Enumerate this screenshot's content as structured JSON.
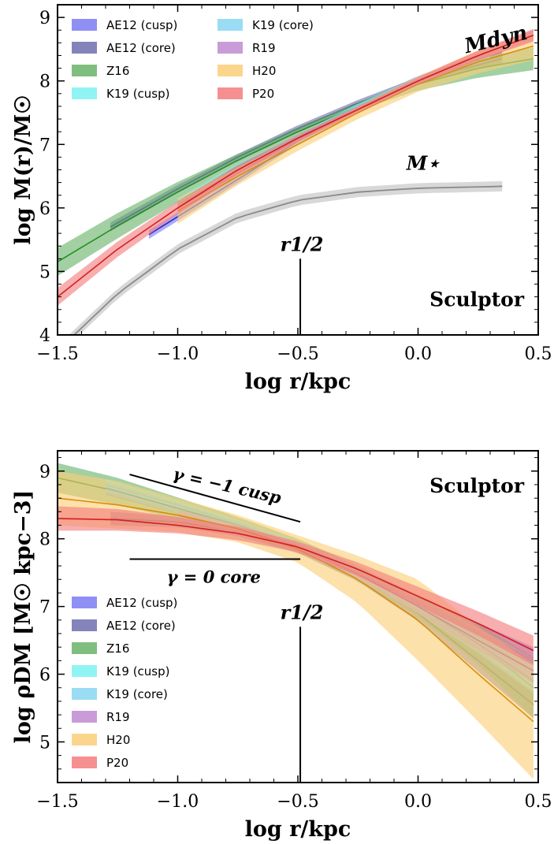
{
  "chart_data": [
    {
      "type": "area",
      "xlabel": "log r/kpc",
      "ylabel": "log M(r)/M☉",
      "xlim": [
        -1.5,
        0.5
      ],
      "ylim": [
        4,
        9.2
      ],
      "xticks": [
        "−1.5",
        "−1.0",
        "−0.5",
        "0.0",
        "0.5"
      ],
      "yticks": [
        "4",
        "5",
        "6",
        "7",
        "8",
        "9"
      ],
      "labels": {
        "object": "Sculptor",
        "mdyn": "Mdyn",
        "mstar": "M⋆",
        "rhalf": "r1/2",
        "rhalf_x": -0.49
      },
      "legend": {
        "placement": "upper-left, two columns"
      },
      "series": [
        {
          "name": "AE12 (cusp)",
          "color": "#7b7bf5",
          "x": [
            -1.12,
            -0.75,
            -0.5,
            -0.25,
            0.0,
            0.35
          ],
          "y": [
            5.58,
            6.45,
            7.05,
            7.58,
            8.02,
            8.45
          ],
          "err": [
            0.07,
            0.06,
            0.05,
            0.05,
            0.06,
            0.08
          ]
        },
        {
          "name": "AE12 (core)",
          "color": "#6f6fae",
          "x": [
            -1.28,
            -1.0,
            -0.75,
            -0.5,
            -0.25,
            0.0,
            0.35
          ],
          "y": [
            5.7,
            6.3,
            6.8,
            7.25,
            7.65,
            8.0,
            8.35
          ],
          "err": [
            0.07,
            0.06,
            0.05,
            0.05,
            0.05,
            0.06,
            0.07
          ]
        },
        {
          "name": "Z16",
          "color": "#6ab36a",
          "x": [
            -1.5,
            -1.25,
            -1.0,
            -0.75,
            -0.5,
            -0.25,
            0.0,
            0.25,
            0.48
          ],
          "y": [
            5.15,
            5.72,
            6.25,
            6.75,
            7.2,
            7.6,
            7.95,
            8.2,
            8.35
          ],
          "err": [
            0.22,
            0.2,
            0.16,
            0.1,
            0.07,
            0.06,
            0.1,
            0.15,
            0.18
          ]
        },
        {
          "name": "K19 (cusp)",
          "color": "#7ef2f2",
          "x": [
            -1.0,
            -0.75,
            -0.5,
            -0.25,
            0.0,
            0.3
          ],
          "y": [
            6.1,
            6.65,
            7.12,
            7.6,
            8.02,
            8.42
          ],
          "err": [
            0.05,
            0.05,
            0.04,
            0.04,
            0.05,
            0.06
          ]
        },
        {
          "name": "K19 (core)",
          "color": "#88d6f2",
          "x": [
            -1.0,
            -0.75,
            -0.5,
            -0.25,
            0.0,
            0.3
          ],
          "y": [
            6.05,
            6.6,
            7.1,
            7.58,
            8.0,
            8.4
          ],
          "err": [
            0.05,
            0.05,
            0.04,
            0.04,
            0.05,
            0.06
          ]
        },
        {
          "name": "R19",
          "color": "#c08ad1",
          "x": [
            -1.0,
            -0.75,
            -0.5,
            -0.25,
            0.0,
            0.25,
            0.48
          ],
          "y": [
            6.0,
            6.55,
            7.08,
            7.55,
            8.0,
            8.4,
            8.72
          ],
          "err": [
            0.06,
            0.05,
            0.04,
            0.04,
            0.05,
            0.07,
            0.08
          ]
        },
        {
          "name": "H20",
          "color": "#fbce78",
          "x": [
            -1.0,
            -0.75,
            -0.5,
            -0.25,
            0.0,
            0.25,
            0.48
          ],
          "y": [
            5.95,
            6.5,
            7.0,
            7.5,
            7.95,
            8.3,
            8.55
          ],
          "err": [
            0.2,
            0.14,
            0.1,
            0.1,
            0.12,
            0.18,
            0.22
          ]
        },
        {
          "name": "P20",
          "color": "#f47c7c",
          "x": [
            -1.5,
            -1.25,
            -1.0,
            -0.75,
            -0.5,
            -0.25,
            0.0,
            0.25,
            0.48
          ],
          "y": [
            4.6,
            5.35,
            6.0,
            6.6,
            7.1,
            7.55,
            8.0,
            8.4,
            8.72
          ],
          "err": [
            0.14,
            0.12,
            0.1,
            0.08,
            0.06,
            0.05,
            0.06,
            0.08,
            0.1
          ]
        }
      ],
      "stellar": {
        "name": "M⋆",
        "color": "#b8b8b8",
        "x": [
          -1.5,
          -1.25,
          -1.0,
          -0.75,
          -0.5,
          -0.25,
          0.0,
          0.35
        ],
        "y": [
          3.75,
          4.65,
          5.35,
          5.85,
          6.12,
          6.25,
          6.31,
          6.34
        ],
        "err": [
          0.08,
          0.08,
          0.08,
          0.08,
          0.08,
          0.08,
          0.08,
          0.08
        ]
      }
    },
    {
      "type": "area",
      "xlabel": "log r/kpc",
      "ylabel": "log ρDM [M☉ kpc−3]",
      "xlim": [
        -1.5,
        0.5
      ],
      "ylim": [
        4.4,
        9.3
      ],
      "xticks": [
        "−1.5",
        "−1.0",
        "−0.5",
        "0.0",
        "0.5"
      ],
      "yticks": [
        "5",
        "6",
        "7",
        "8",
        "9"
      ],
      "labels": {
        "object": "Sculptor",
        "cusp": "γ = −1 cusp",
        "core": "γ = 0 core",
        "rhalf": "r1/2",
        "rhalf_x": -0.49
      },
      "reference_lines": {
        "cusp": {
          "x": [
            -1.2,
            -0.49
          ],
          "y": [
            8.95,
            8.25
          ]
        },
        "core": {
          "x": [
            -1.2,
            -0.49
          ],
          "y": [
            7.7,
            7.7
          ]
        }
      },
      "legend": {
        "placement": "lower-left"
      },
      "series": [
        {
          "name": "AE12 (cusp)",
          "color": "#7b7bf5",
          "x": [
            -1.3,
            -1.0,
            -0.75,
            -0.5,
            -0.25,
            0.0,
            0.25,
            0.48
          ],
          "y": [
            8.75,
            8.45,
            8.2,
            7.9,
            7.5,
            7.05,
            6.6,
            6.2
          ],
          "err": [
            0.1,
            0.08,
            0.06,
            0.06,
            0.08,
            0.12,
            0.16,
            0.2
          ]
        },
        {
          "name": "AE12 (core)",
          "color": "#6f6fae",
          "x": [
            -1.28,
            -1.0,
            -0.75,
            -0.5,
            -0.25,
            0.0,
            0.25,
            0.48
          ],
          "y": [
            8.3,
            8.25,
            8.1,
            7.85,
            7.45,
            6.9,
            6.2,
            5.55
          ],
          "err": [
            0.1,
            0.08,
            0.06,
            0.06,
            0.08,
            0.12,
            0.16,
            0.2
          ]
        },
        {
          "name": "Z16",
          "color": "#6ab36a",
          "x": [
            -1.5,
            -1.25,
            -1.0,
            -0.75,
            -0.5,
            -0.25,
            0.0,
            0.25,
            0.48
          ],
          "y": [
            8.9,
            8.7,
            8.45,
            8.2,
            7.9,
            7.5,
            7.0,
            6.45,
            5.8
          ],
          "err": [
            0.22,
            0.2,
            0.16,
            0.12,
            0.1,
            0.1,
            0.15,
            0.3,
            0.45
          ]
        },
        {
          "name": "K19 (cusp)",
          "color": "#7ef2f2",
          "x": [
            -1.3,
            -1.0,
            -0.75,
            -0.5,
            -0.25,
            0.0,
            0.25,
            0.48
          ],
          "y": [
            8.8,
            8.5,
            8.22,
            7.9,
            7.5,
            7.05,
            6.55,
            6.05
          ],
          "err": [
            0.08,
            0.07,
            0.06,
            0.06,
            0.08,
            0.1,
            0.14,
            0.18
          ]
        },
        {
          "name": "K19 (core)",
          "color": "#88d6f2",
          "x": [
            -1.3,
            -1.0,
            -0.75,
            -0.5,
            -0.25,
            0.0,
            0.25,
            0.48
          ],
          "y": [
            8.75,
            8.45,
            8.2,
            7.9,
            7.48,
            7.0,
            6.45,
            5.9
          ],
          "err": [
            0.08,
            0.07,
            0.06,
            0.06,
            0.08,
            0.1,
            0.14,
            0.18
          ]
        },
        {
          "name": "R19",
          "color": "#c08ad1",
          "x": [
            -1.0,
            -0.75,
            -0.5,
            -0.25,
            0.0,
            0.25,
            0.48
          ],
          "y": [
            8.35,
            8.15,
            7.88,
            7.48,
            7.0,
            6.5,
            6.05
          ],
          "err": [
            0.08,
            0.06,
            0.06,
            0.08,
            0.1,
            0.14,
            0.18
          ]
        },
        {
          "name": "H20",
          "color": "#fbce78",
          "x": [
            -1.5,
            -1.25,
            -1.0,
            -0.75,
            -0.5,
            -0.25,
            0.0,
            0.25,
            0.48
          ],
          "y": [
            8.6,
            8.5,
            8.35,
            8.15,
            7.85,
            7.4,
            6.8,
            6.0,
            5.3
          ],
          "err": [
            0.4,
            0.35,
            0.25,
            0.2,
            0.2,
            0.35,
            0.6,
            0.7,
            0.85
          ]
        },
        {
          "name": "P20",
          "color": "#f47c7c",
          "x": [
            -1.5,
            -1.25,
            -1.0,
            -0.75,
            -0.5,
            -0.25,
            0.0,
            0.25,
            0.48
          ],
          "y": [
            8.3,
            8.28,
            8.2,
            8.08,
            7.88,
            7.55,
            7.15,
            6.75,
            6.35
          ],
          "err": [
            0.18,
            0.16,
            0.12,
            0.1,
            0.08,
            0.1,
            0.14,
            0.18,
            0.22
          ]
        }
      ]
    }
  ]
}
